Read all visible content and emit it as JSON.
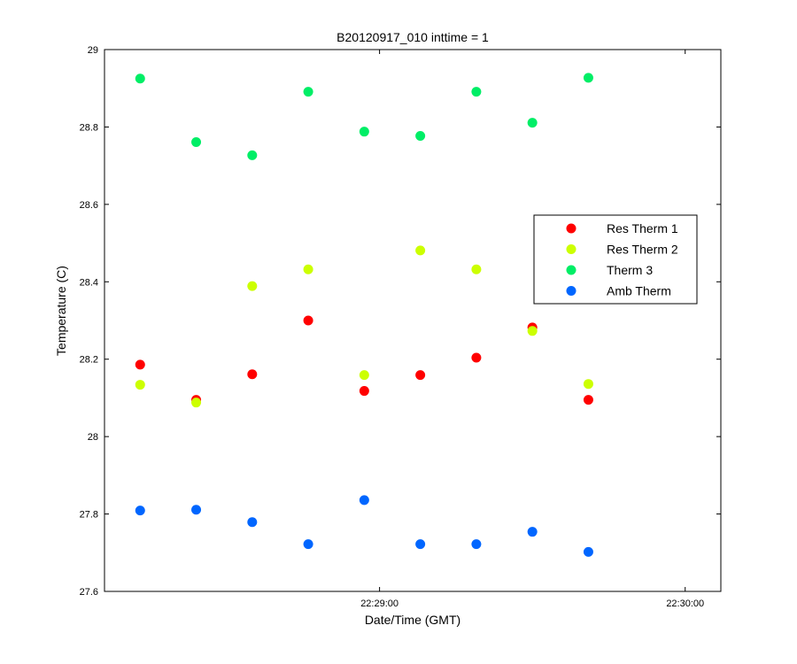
{
  "chart_data": {
    "type": "scatter",
    "title": "B20120917_010 inttime = 1",
    "xlabel": "Date/Time (GMT)",
    "ylabel": "Temperature (C)",
    "xlim": [
      "22:28:06",
      "22:30:07"
    ],
    "ylim": [
      27.6,
      29
    ],
    "x_ticks": [
      "22:29:00",
      "22:30:00"
    ],
    "y_ticks": [
      "27.6",
      "27.8",
      "28",
      "28.2",
      "28.4",
      "28.6",
      "28.8",
      "29"
    ],
    "grid": false,
    "legend_position": "right",
    "x": [
      "22:28:13",
      "22:28:24",
      "22:28:35",
      "22:28:46",
      "22:28:57",
      "22:29:08",
      "22:29:19",
      "22:29:30",
      "22:29:41"
    ],
    "series": [
      {
        "name": "Res Therm 1",
        "color": "#ff0000",
        "values": [
          28.186,
          28.095,
          28.161,
          28.3,
          28.118,
          28.159,
          28.204,
          28.282,
          28.095
        ]
      },
      {
        "name": "Res Therm 2",
        "color": "#ccff00",
        "values": [
          28.134,
          28.088,
          28.389,
          28.432,
          28.159,
          28.481,
          28.432,
          28.273,
          28.136
        ]
      },
      {
        "name": "Therm 3",
        "color": "#00ee66",
        "values": [
          28.925,
          28.761,
          28.727,
          28.891,
          28.788,
          28.777,
          28.891,
          28.811,
          28.927
        ]
      },
      {
        "name": "Amb Therm",
        "color": "#0066ff",
        "values": [
          27.809,
          27.811,
          27.779,
          27.722,
          27.836,
          27.722,
          27.722,
          27.754,
          27.702
        ]
      }
    ]
  }
}
